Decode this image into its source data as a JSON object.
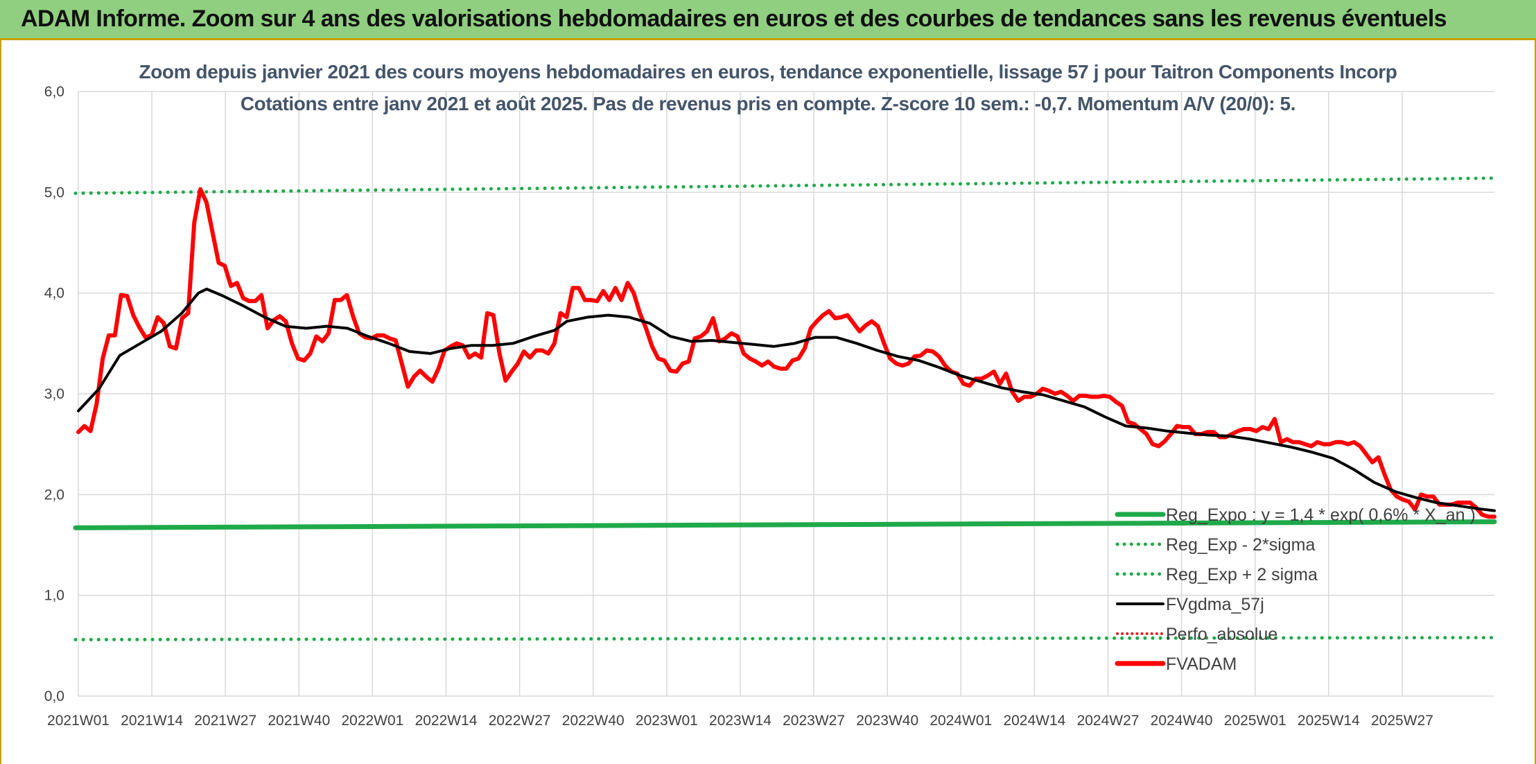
{
  "banner": {
    "title": "ADAM Informe. Zoom sur 4 ans des valorisations hebdomadaires en euros et des courbes de tendances sans les revenus éventuels"
  },
  "colors": {
    "banner_bg": "#8fcf7f",
    "reg_expo": "#1faa4a",
    "sigma_lines": "#1faa4a",
    "fvgdma": "#000000",
    "perfo": "#e02020",
    "fvadam": "#ff0000"
  },
  "chart_data": {
    "type": "line",
    "title": "Zoom depuis janvier 2021 des cours moyens hebdomadaires en euros, tendance exponentielle, lissage 57 j pour Taitron Components Incorp",
    "subtitle": "Cotations entre janv 2021 et août 2025. Pas de revenus pris en compte. Z-score 10 sem.: -0,7. Momentum A/V (20/0): 5.",
    "ylim": [
      0,
      6
    ],
    "yticks": [
      "0,0",
      "1,0",
      "2,0",
      "3,0",
      "4,0",
      "5,0",
      "6,0"
    ],
    "xticks": [
      "2021W01",
      "2021W14",
      "2021W27",
      "2021W40",
      "2022W01",
      "2022W14",
      "2022W27",
      "2022W40",
      "2023W01",
      "2023W14",
      "2023W27",
      "2023W40",
      "2024W01",
      "2024W14",
      "2024W27",
      "2024W40",
      "2025W01",
      "2025W14",
      "2025W27"
    ],
    "week_count": 243,
    "grid": true,
    "legend_position": "bottom-right",
    "series": [
      {
        "name": "Reg_Expo : y = 1,4 * exp( 0,6% * X_an )",
        "style": "solid-thick",
        "color": "#1faa4a",
        "values": [
          1.67,
          1.73
        ]
      },
      {
        "name": "Reg_Exp - 2*sigma",
        "style": "dotted",
        "color": "#1faa4a",
        "values": [
          0.56,
          0.58
        ]
      },
      {
        "name": "Reg_Exp + 2 sigma",
        "style": "dotted",
        "color": "#1faa4a",
        "values": [
          4.99,
          5.14
        ]
      },
      {
        "name": "FVgdma_57j",
        "style": "solid",
        "color": "#000000",
        "points": [
          [
            0,
            2.83
          ],
          [
            5,
            3.05
          ],
          [
            10,
            3.38
          ],
          [
            15,
            3.5
          ],
          [
            20,
            3.62
          ],
          [
            25,
            3.8
          ],
          [
            29,
            4.0
          ],
          [
            31,
            4.04
          ],
          [
            35,
            3.97
          ],
          [
            40,
            3.87
          ],
          [
            45,
            3.76
          ],
          [
            50,
            3.67
          ],
          [
            55,
            3.65
          ],
          [
            60,
            3.67
          ],
          [
            65,
            3.65
          ],
          [
            70,
            3.57
          ],
          [
            75,
            3.5
          ],
          [
            80,
            3.42
          ],
          [
            85,
            3.4
          ],
          [
            90,
            3.45
          ],
          [
            95,
            3.48
          ],
          [
            100,
            3.48
          ],
          [
            105,
            3.5
          ],
          [
            110,
            3.57
          ],
          [
            115,
            3.63
          ],
          [
            118,
            3.72
          ],
          [
            123,
            3.76
          ],
          [
            128,
            3.78
          ],
          [
            133,
            3.76
          ],
          [
            138,
            3.7
          ],
          [
            143,
            3.57
          ],
          [
            148,
            3.52
          ],
          [
            153,
            3.53
          ],
          [
            158,
            3.51
          ],
          [
            163,
            3.49
          ],
          [
            168,
            3.47
          ],
          [
            173,
            3.5
          ],
          [
            178,
            3.56
          ],
          [
            183,
            3.56
          ],
          [
            188,
            3.5
          ],
          [
            193,
            3.43
          ],
          [
            198,
            3.37
          ],
          [
            203,
            3.33
          ],
          [
            208,
            3.26
          ],
          [
            213,
            3.18
          ],
          [
            218,
            3.12
          ],
          [
            223,
            3.06
          ],
          [
            228,
            3.02
          ],
          [
            233,
            2.99
          ],
          [
            238,
            2.93
          ],
          [
            243,
            2.87
          ],
          [
            248,
            2.77
          ],
          [
            253,
            2.68
          ],
          [
            258,
            2.66
          ],
          [
            263,
            2.63
          ],
          [
            268,
            2.61
          ],
          [
            273,
            2.59
          ],
          [
            278,
            2.58
          ],
          [
            283,
            2.55
          ],
          [
            288,
            2.51
          ],
          [
            293,
            2.47
          ],
          [
            298,
            2.42
          ],
          [
            303,
            2.36
          ],
          [
            308,
            2.25
          ],
          [
            313,
            2.12
          ],
          [
            318,
            2.03
          ],
          [
            323,
            1.97
          ],
          [
            328,
            1.92
          ],
          [
            333,
            1.89
          ],
          [
            338,
            1.86
          ],
          [
            342,
            1.84
          ]
        ]
      },
      {
        "name": "Perfo_absolue",
        "style": "dotted",
        "color": "#e02020",
        "values": []
      },
      {
        "name": "FVADAM",
        "style": "solid-thick",
        "color": "#ff0000",
        "points": [
          [
            0,
            2.62
          ],
          [
            1,
            2.68
          ],
          [
            2,
            2.63
          ],
          [
            3,
            2.9
          ],
          [
            4,
            3.35
          ],
          [
            5,
            3.58
          ],
          [
            6,
            3.58
          ],
          [
            7,
            3.98
          ],
          [
            8,
            3.97
          ],
          [
            9,
            3.78
          ],
          [
            10,
            3.66
          ],
          [
            11,
            3.56
          ],
          [
            12,
            3.58
          ],
          [
            13,
            3.76
          ],
          [
            14,
            3.7
          ],
          [
            15,
            3.47
          ],
          [
            16,
            3.45
          ],
          [
            17,
            3.75
          ],
          [
            18,
            3.8
          ],
          [
            19,
            4.7
          ],
          [
            20,
            5.03
          ],
          [
            21,
            4.9
          ],
          [
            22,
            4.6
          ],
          [
            23,
            4.3
          ],
          [
            24,
            4.27
          ],
          [
            25,
            4.07
          ],
          [
            26,
            4.1
          ],
          [
            27,
            3.95
          ],
          [
            28,
            3.92
          ],
          [
            29,
            3.92
          ],
          [
            30,
            3.98
          ],
          [
            31,
            3.65
          ],
          [
            32,
            3.73
          ],
          [
            33,
            3.77
          ],
          [
            34,
            3.72
          ],
          [
            35,
            3.5
          ],
          [
            36,
            3.35
          ],
          [
            37,
            3.33
          ],
          [
            38,
            3.4
          ],
          [
            39,
            3.57
          ],
          [
            40,
            3.52
          ],
          [
            41,
            3.6
          ],
          [
            42,
            3.93
          ],
          [
            43,
            3.93
          ],
          [
            44,
            3.98
          ],
          [
            45,
            3.77
          ],
          [
            46,
            3.6
          ],
          [
            47,
            3.56
          ],
          [
            48,
            3.55
          ],
          [
            49,
            3.58
          ],
          [
            50,
            3.58
          ],
          [
            51,
            3.55
          ],
          [
            52,
            3.53
          ],
          [
            53,
            3.3
          ],
          [
            54,
            3.07
          ],
          [
            55,
            3.17
          ],
          [
            56,
            3.23
          ],
          [
            57,
            3.17
          ],
          [
            58,
            3.12
          ],
          [
            59,
            3.25
          ],
          [
            60,
            3.43
          ],
          [
            61,
            3.47
          ],
          [
            62,
            3.5
          ],
          [
            63,
            3.48
          ],
          [
            64,
            3.36
          ],
          [
            65,
            3.4
          ],
          [
            66,
            3.36
          ],
          [
            67,
            3.8
          ],
          [
            68,
            3.78
          ],
          [
            69,
            3.4
          ],
          [
            70,
            3.13
          ],
          [
            71,
            3.22
          ],
          [
            72,
            3.3
          ],
          [
            73,
            3.42
          ],
          [
            74,
            3.36
          ],
          [
            75,
            3.43
          ],
          [
            76,
            3.43
          ],
          [
            77,
            3.4
          ],
          [
            78,
            3.5
          ],
          [
            79,
            3.8
          ],
          [
            80,
            3.76
          ],
          [
            81,
            4.05
          ],
          [
            82,
            4.05
          ],
          [
            83,
            3.93
          ],
          [
            84,
            3.93
          ],
          [
            85,
            3.92
          ],
          [
            86,
            4.02
          ],
          [
            87,
            3.93
          ],
          [
            88,
            4.05
          ],
          [
            89,
            3.93
          ],
          [
            90,
            4.1
          ],
          [
            91,
            4.0
          ],
          [
            92,
            3.8
          ],
          [
            93,
            3.65
          ],
          [
            94,
            3.47
          ],
          [
            95,
            3.35
          ],
          [
            96,
            3.33
          ],
          [
            97,
            3.23
          ],
          [
            98,
            3.22
          ],
          [
            99,
            3.3
          ],
          [
            100,
            3.32
          ],
          [
            101,
            3.55
          ],
          [
            102,
            3.57
          ],
          [
            103,
            3.62
          ],
          [
            104,
            3.75
          ],
          [
            105,
            3.52
          ],
          [
            106,
            3.55
          ],
          [
            107,
            3.6
          ],
          [
            108,
            3.57
          ],
          [
            109,
            3.4
          ],
          [
            110,
            3.35
          ],
          [
            111,
            3.32
          ],
          [
            112,
            3.28
          ],
          [
            113,
            3.32
          ],
          [
            114,
            3.27
          ],
          [
            115,
            3.25
          ],
          [
            116,
            3.25
          ],
          [
            117,
            3.33
          ],
          [
            118,
            3.35
          ],
          [
            119,
            3.45
          ],
          [
            120,
            3.65
          ],
          [
            121,
            3.72
          ],
          [
            122,
            3.78
          ],
          [
            123,
            3.82
          ],
          [
            124,
            3.75
          ],
          [
            125,
            3.76
          ],
          [
            126,
            3.78
          ],
          [
            127,
            3.7
          ],
          [
            128,
            3.62
          ],
          [
            129,
            3.68
          ],
          [
            130,
            3.72
          ],
          [
            131,
            3.67
          ],
          [
            132,
            3.5
          ],
          [
            133,
            3.35
          ],
          [
            134,
            3.3
          ],
          [
            135,
            3.28
          ],
          [
            136,
            3.3
          ],
          [
            137,
            3.37
          ],
          [
            138,
            3.38
          ],
          [
            139,
            3.43
          ],
          [
            140,
            3.42
          ],
          [
            141,
            3.37
          ],
          [
            142,
            3.28
          ],
          [
            143,
            3.22
          ],
          [
            144,
            3.2
          ],
          [
            145,
            3.1
          ],
          [
            146,
            3.08
          ],
          [
            147,
            3.15
          ],
          [
            148,
            3.15
          ],
          [
            149,
            3.18
          ],
          [
            150,
            3.22
          ],
          [
            151,
            3.1
          ],
          [
            152,
            3.2
          ],
          [
            153,
            3.02
          ],
          [
            154,
            2.93
          ],
          [
            155,
            2.97
          ],
          [
            156,
            2.97
          ],
          [
            157,
            3.0
          ],
          [
            158,
            3.05
          ],
          [
            159,
            3.03
          ],
          [
            160,
            3.0
          ],
          [
            161,
            3.02
          ],
          [
            162,
            2.98
          ],
          [
            163,
            2.93
          ],
          [
            164,
            2.98
          ],
          [
            165,
            2.98
          ],
          [
            166,
            2.97
          ],
          [
            167,
            2.97
          ],
          [
            168,
            2.98
          ],
          [
            169,
            2.97
          ],
          [
            170,
            2.92
          ],
          [
            171,
            2.88
          ],
          [
            172,
            2.72
          ],
          [
            173,
            2.7
          ],
          [
            174,
            2.65
          ],
          [
            175,
            2.6
          ],
          [
            176,
            2.5
          ],
          [
            177,
            2.48
          ],
          [
            178,
            2.53
          ],
          [
            179,
            2.6
          ],
          [
            180,
            2.68
          ],
          [
            181,
            2.67
          ],
          [
            182,
            2.67
          ],
          [
            183,
            2.6
          ],
          [
            184,
            2.6
          ],
          [
            185,
            2.62
          ],
          [
            186,
            2.62
          ],
          [
            187,
            2.57
          ],
          [
            188,
            2.57
          ],
          [
            189,
            2.6
          ],
          [
            190,
            2.63
          ],
          [
            191,
            2.65
          ],
          [
            192,
            2.65
          ],
          [
            193,
            2.63
          ],
          [
            194,
            2.67
          ],
          [
            195,
            2.65
          ],
          [
            196,
            2.75
          ],
          [
            197,
            2.52
          ],
          [
            198,
            2.55
          ],
          [
            199,
            2.52
          ],
          [
            200,
            2.52
          ],
          [
            201,
            2.5
          ],
          [
            202,
            2.48
          ],
          [
            203,
            2.52
          ],
          [
            204,
            2.5
          ],
          [
            205,
            2.5
          ],
          [
            206,
            2.52
          ],
          [
            207,
            2.52
          ],
          [
            208,
            2.5
          ],
          [
            209,
            2.52
          ],
          [
            210,
            2.48
          ],
          [
            211,
            2.4
          ],
          [
            212,
            2.32
          ],
          [
            213,
            2.37
          ],
          [
            214,
            2.2
          ],
          [
            215,
            2.05
          ],
          [
            216,
            1.98
          ],
          [
            217,
            1.95
          ],
          [
            218,
            1.93
          ],
          [
            219,
            1.85
          ],
          [
            220,
            2.0
          ],
          [
            221,
            1.98
          ],
          [
            222,
            1.98
          ],
          [
            223,
            1.9
          ],
          [
            224,
            1.9
          ],
          [
            225,
            1.9
          ],
          [
            226,
            1.92
          ],
          [
            227,
            1.92
          ],
          [
            228,
            1.92
          ],
          [
            229,
            1.87
          ],
          [
            230,
            1.8
          ],
          [
            231,
            1.78
          ],
          [
            232,
            1.78
          ]
        ]
      }
    ]
  }
}
